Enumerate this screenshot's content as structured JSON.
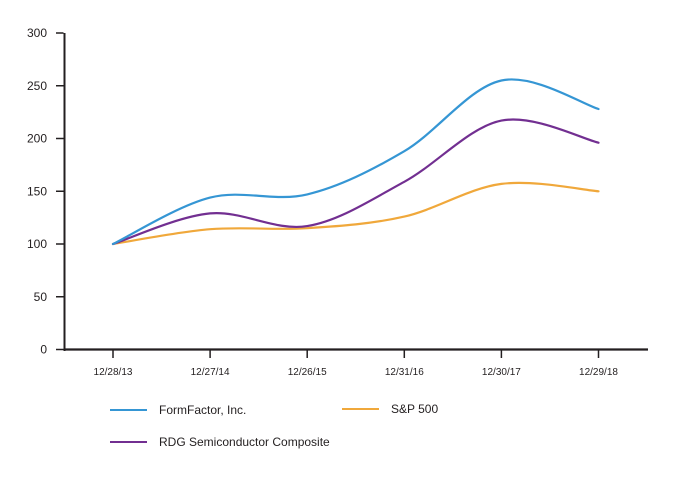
{
  "chart_data": {
    "type": "line",
    "title": "",
    "xlabel": "",
    "ylabel": "",
    "categories": [
      "12/28/13",
      "12/27/14",
      "12/26/15",
      "12/31/16",
      "12/30/17",
      "12/29/18"
    ],
    "series": [
      {
        "name": "S&P 500",
        "color": "#F0A83B",
        "values": [
          100,
          114,
          115,
          126,
          157,
          150
        ]
      },
      {
        "name": "RDG Semiconductor Composite",
        "color": "#722F91",
        "values": [
          100,
          129,
          117,
          159,
          217,
          196
        ]
      },
      {
        "name": "FormFactor, Inc.",
        "color": "#3596D4",
        "values": [
          100,
          144,
          147,
          188,
          255,
          228
        ]
      }
    ],
    "y_ticks": [
      0,
      50,
      100,
      150,
      200,
      250,
      300
    ],
    "ylim": [
      0,
      300
    ],
    "grid": false,
    "smooth_lines": true,
    "legend_position": "bottom",
    "axis_color": "#231F20",
    "text_color": "#231F20"
  },
  "legend": {
    "items": [
      {
        "label": "FormFactor, Inc.",
        "color": "#3596D4"
      },
      {
        "label": "S&P 500",
        "color": "#F0A83B"
      },
      {
        "label": "RDG Semiconductor Composite",
        "color": "#722F91"
      }
    ]
  }
}
